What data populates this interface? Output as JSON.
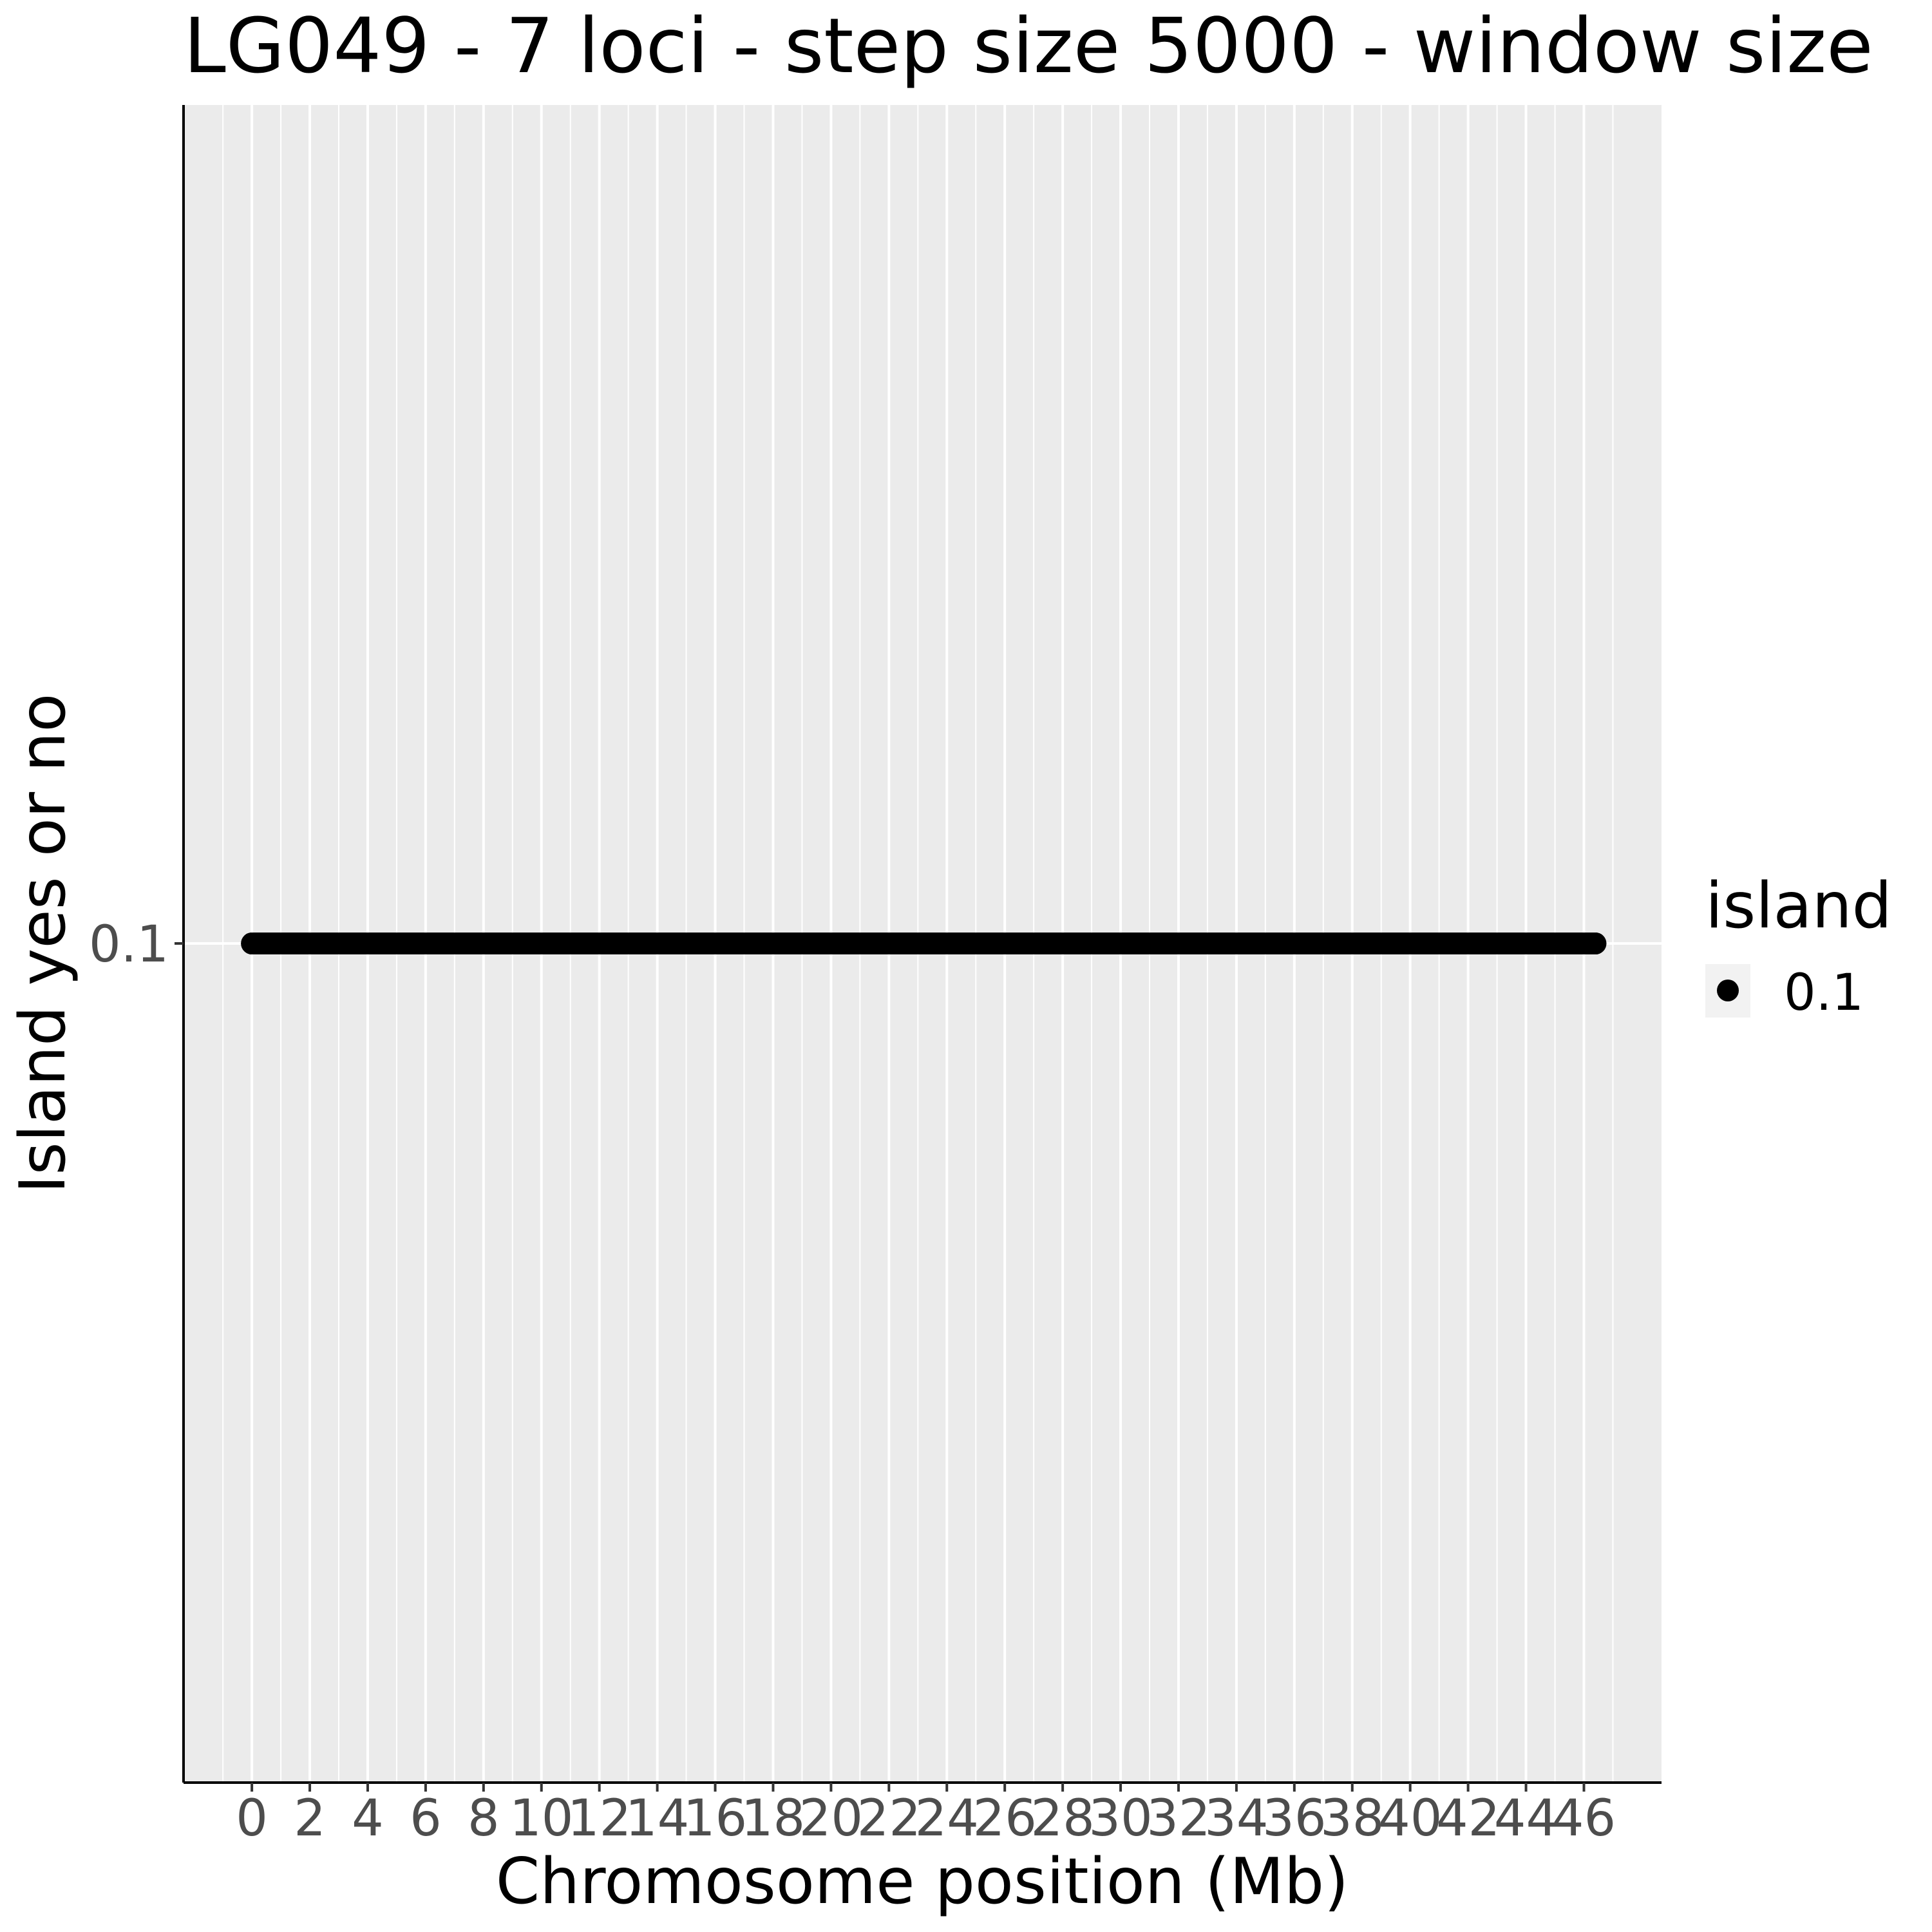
{
  "chart_data": {
    "type": "scatter",
    "title": "LG049 - 7 loci - step size 5000 - window size",
    "xlabel": "Chromosome position (Mb)",
    "ylabel": "Island yes or no",
    "xlim": [
      -2.36,
      48.68
    ],
    "xticks": [
      0,
      2,
      4,
      6,
      8,
      10,
      12,
      14,
      16,
      18,
      20,
      22,
      24,
      26,
      28,
      30,
      32,
      34,
      36,
      38,
      40,
      42,
      44,
      46
    ],
    "yticks": [
      0.1
    ],
    "grid": true,
    "legend": {
      "title": "island",
      "position": "right",
      "entries": [
        {
          "label": "0.1",
          "color": "#000000"
        }
      ]
    },
    "series": [
      {
        "x_start": 0.0,
        "x_end": 46.4,
        "x_step": 0.005,
        "y": 0.1,
        "color": "#000000"
      }
    ]
  }
}
